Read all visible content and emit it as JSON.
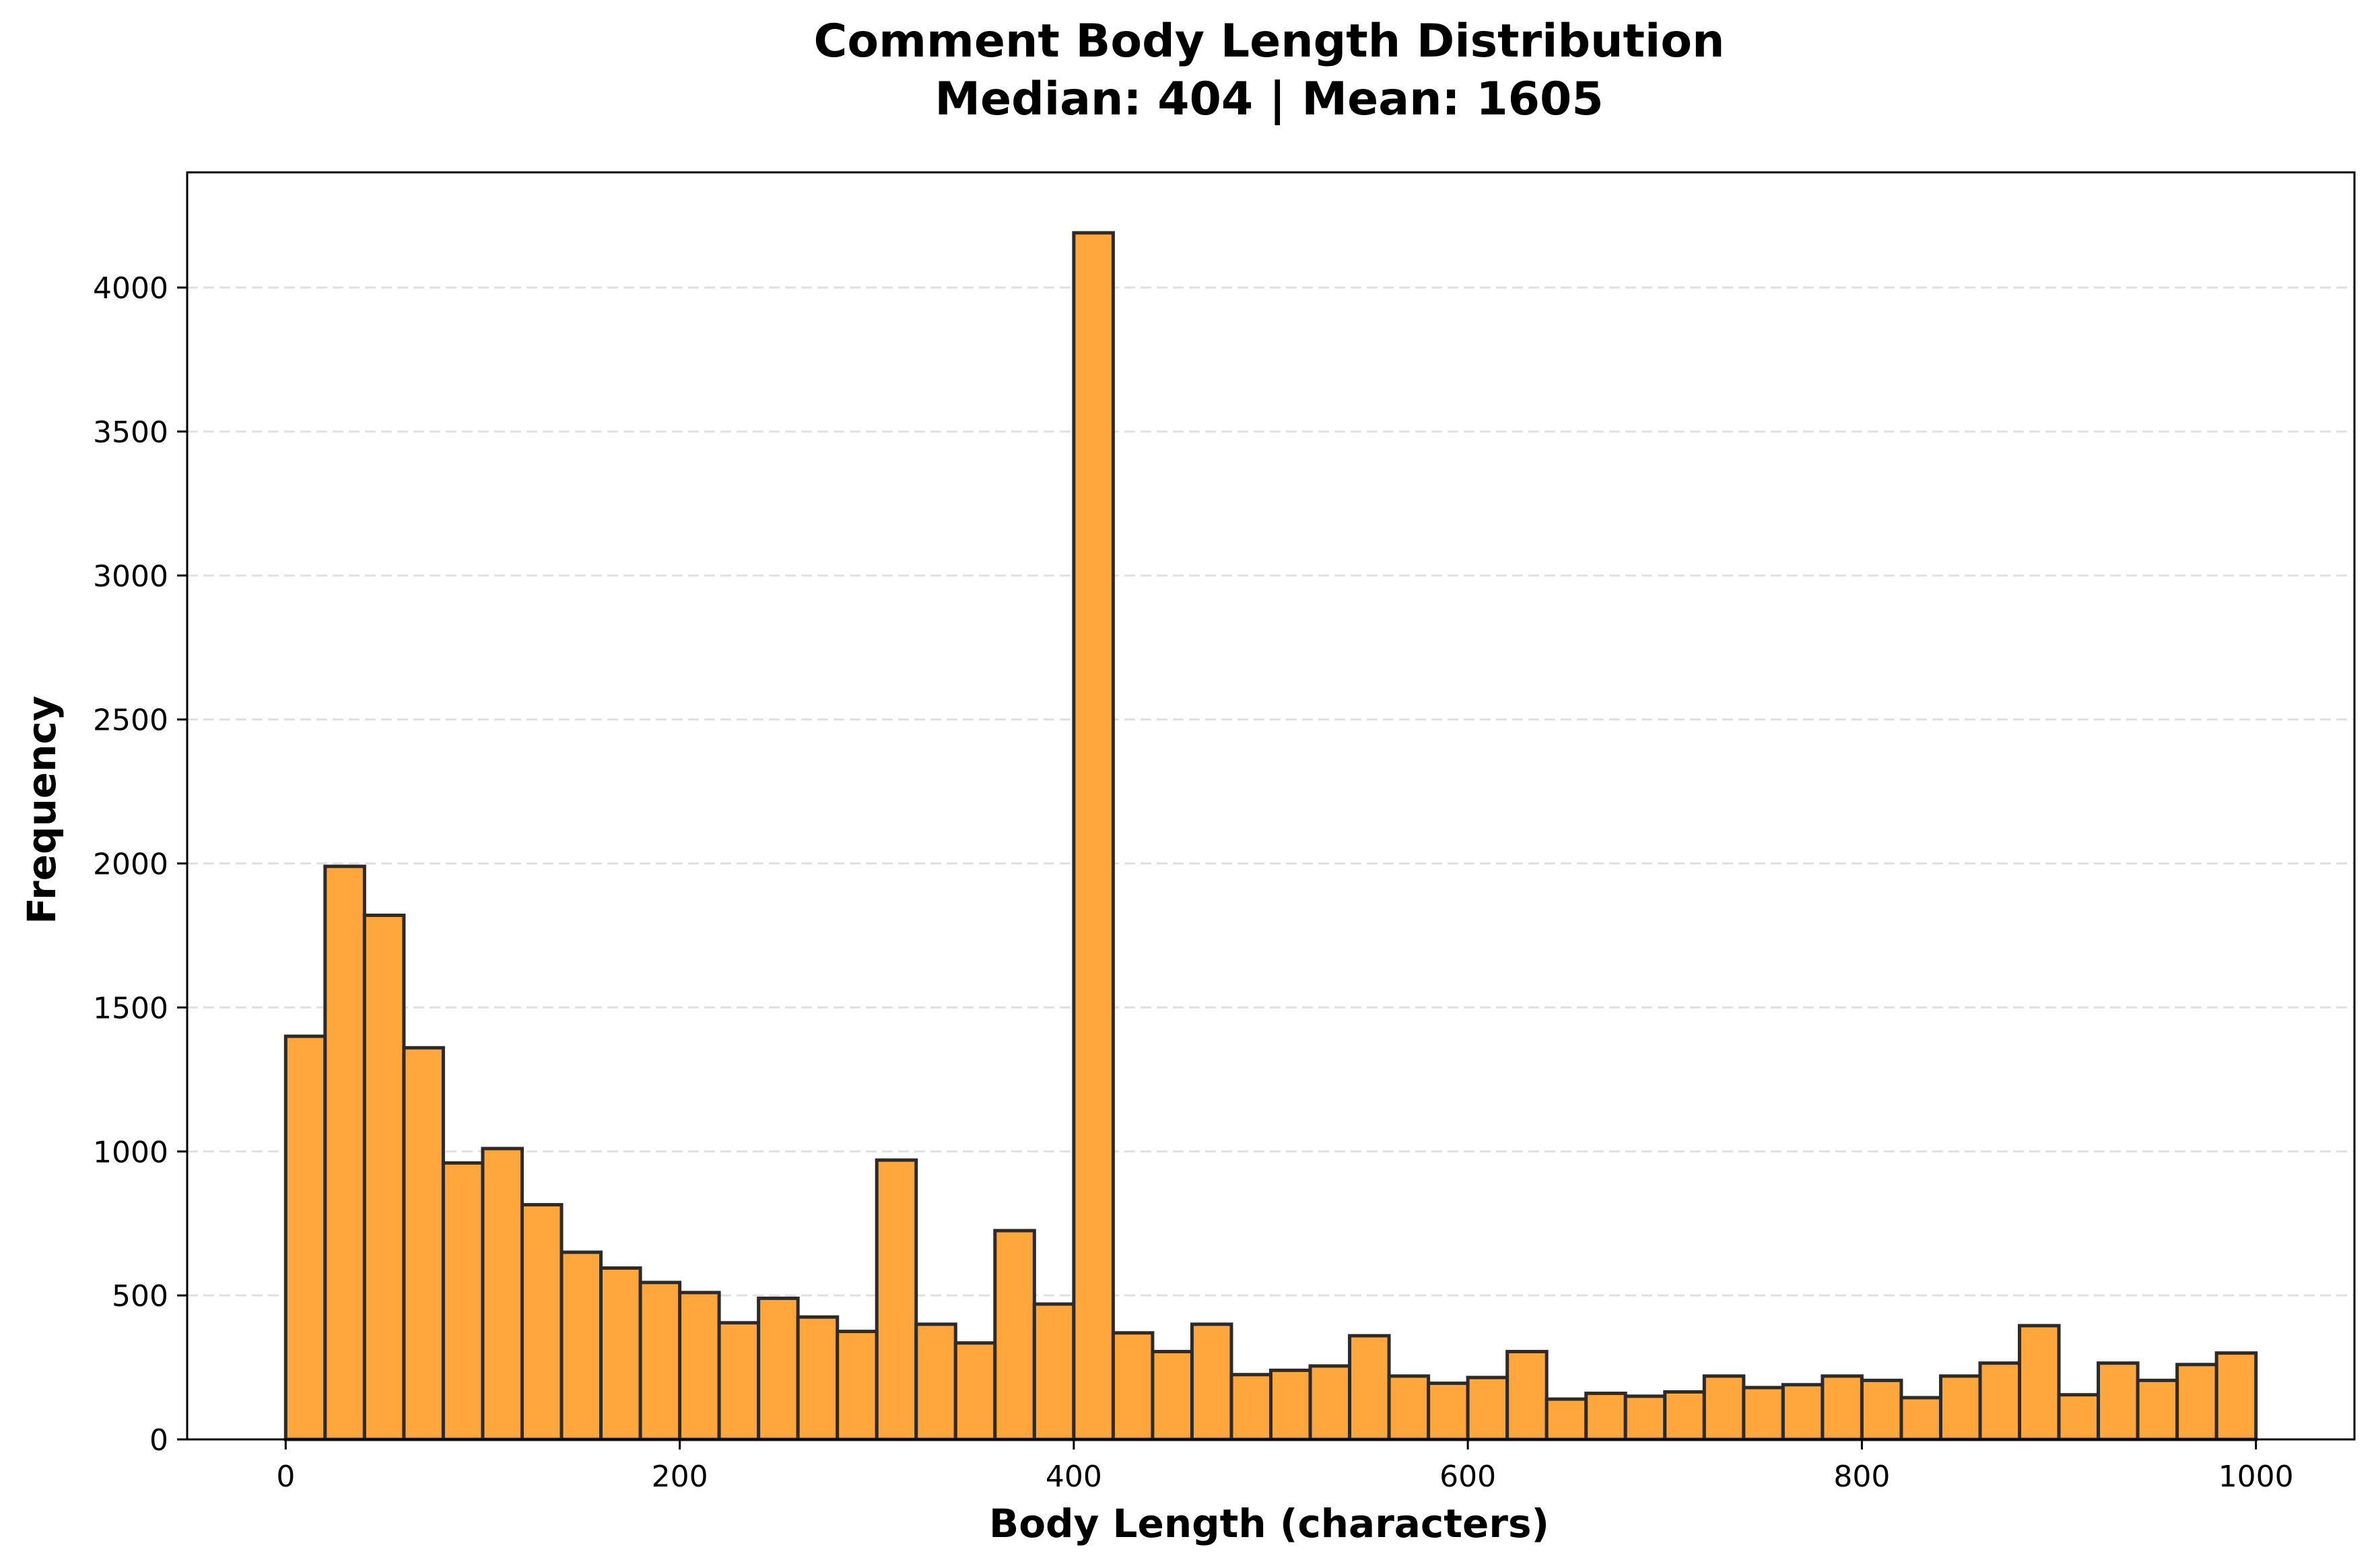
{
  "chart_data": {
    "type": "bar",
    "title": "Comment Body Length Distribution",
    "subtitle": "Median: 404 | Mean: 1605",
    "xlabel": "Body Length (characters)",
    "ylabel": "Frequency",
    "xlim": [
      -50,
      1050
    ],
    "ylim": [
      0,
      4400
    ],
    "bin_width": 20,
    "bin_start": 0,
    "xticks": [
      0,
      200,
      400,
      600,
      800,
      1000
    ],
    "yticks": [
      0,
      500,
      1000,
      1500,
      2000,
      2500,
      3000,
      3500,
      4000
    ],
    "values": [
      1400,
      1990,
      1820,
      1360,
      960,
      1010,
      815,
      650,
      595,
      545,
      510,
      405,
      490,
      425,
      375,
      970,
      400,
      335,
      725,
      470,
      4190,
      370,
      305,
      400,
      225,
      240,
      255,
      360,
      220,
      195,
      215,
      305,
      140,
      160,
      150,
      165,
      220,
      180,
      190,
      220,
      205,
      145,
      220,
      265,
      395,
      155,
      265,
      205,
      260,
      300
    ],
    "grid": "y dashed",
    "colors": {
      "bar_fill": "#ffa63d",
      "bar_edge": "#2b2b2b",
      "grid": "#e0e0e0",
      "axes": "#000000"
    }
  }
}
